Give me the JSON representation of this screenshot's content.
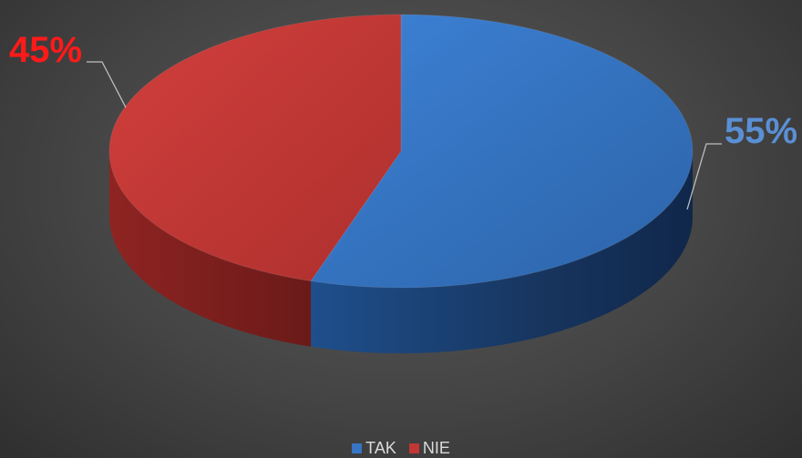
{
  "chart_data": {
    "type": "pie",
    "title": "",
    "categories": [
      "TAK",
      "NIE"
    ],
    "values": [
      55,
      45
    ],
    "data_labels": [
      "55%",
      "45%"
    ],
    "colors": {
      "TAK": "#3575c4",
      "NIE": "#c23634"
    },
    "label_colors": {
      "TAK": "#5a8fd4",
      "NIE": "#ff1a1a"
    },
    "style": "3d-pie",
    "legend_position": "bottom"
  }
}
